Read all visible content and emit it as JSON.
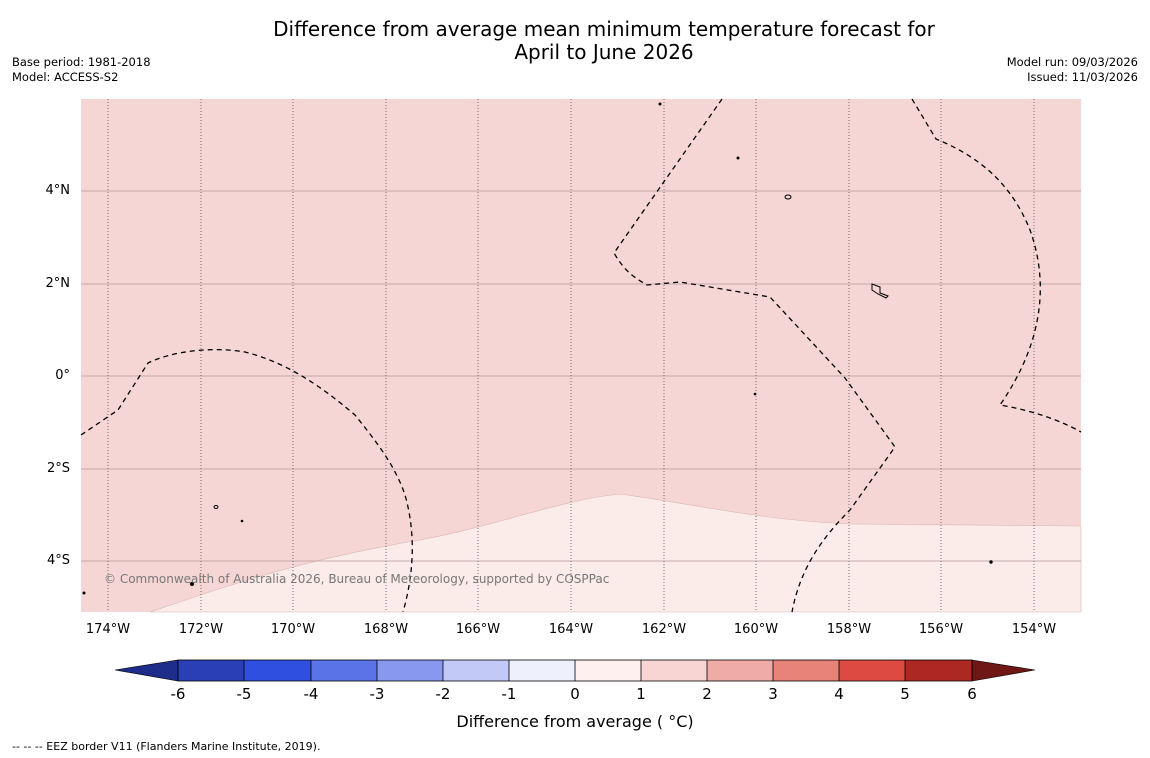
{
  "title": {
    "line1": "Difference from average mean minimum temperature forecast for",
    "line2": "April to June 2026"
  },
  "meta_left": {
    "base_period": "Base period: 1981-2018",
    "model": "Model: ACCESS-S2"
  },
  "meta_right": {
    "model_run": "Model run: 09/03/2026",
    "issued": "Issued: 11/03/2026"
  },
  "map": {
    "lat_labels": [
      "4°N",
      "2°N",
      "0°",
      "2°S",
      "4°S"
    ],
    "lon_labels": [
      "174°W",
      "172°W",
      "170°W",
      "168°W",
      "166°W",
      "164°W",
      "162°W",
      "160°W",
      "158°W",
      "156°W",
      "154°W"
    ],
    "copyright": "© Commonwealth of Australia 2026, Bureau of Meteorology, supported by COSPPac",
    "fill_colors": {
      "band_1_2": "#f5d6d4",
      "band_0_1": "#fbebe9"
    }
  },
  "colorbar": {
    "ticks": [
      "-6",
      "-5",
      "-4",
      "-3",
      "-2",
      "-1",
      "0",
      "1",
      "2",
      "3",
      "4",
      "5",
      "6"
    ],
    "colors": [
      "#1f2d8a",
      "#2a3fb5",
      "#2f4fe0",
      "#5a73e6",
      "#8898ee",
      "#c3c9f7",
      "#eef0fc",
      "#fdf0ee",
      "#f8d5d2",
      "#efaca6",
      "#e78379",
      "#dc4a42",
      "#ad2823",
      "#6e1714"
    ],
    "label": "Difference from average ( °C)"
  },
  "footer": "--  --  -- EEZ border V11 (Flanders Marine Institute, 2019)."
}
